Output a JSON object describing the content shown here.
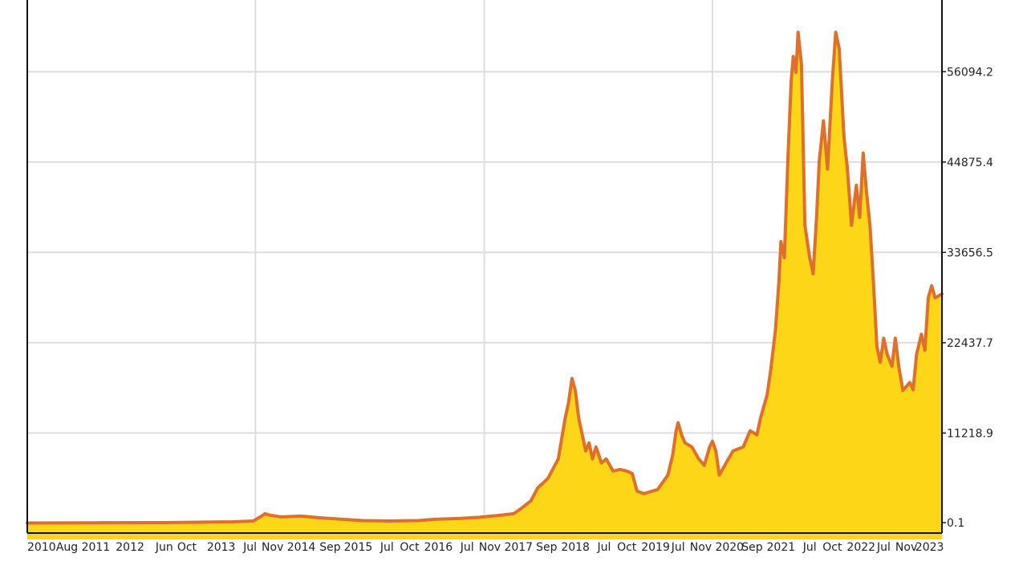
{
  "chart_data": {
    "type": "area",
    "title": "",
    "xlabel": "",
    "ylabel": "",
    "x_range": [
      2010.0,
      2023.35
    ],
    "ylim": [
      -1200,
      65000
    ],
    "grid": true,
    "y_axis_side": "right",
    "y_ticks": [
      {
        "value": 0.1,
        "label": "0.1"
      },
      {
        "value": 11218.9,
        "label": "11218.9"
      },
      {
        "value": 22437.7,
        "label": "22437.7"
      },
      {
        "value": 33656.5,
        "label": "33656.5"
      },
      {
        "value": 44875.4,
        "label": "44875.4"
      },
      {
        "value": 56094.2,
        "label": "56094.2"
      }
    ],
    "x_gridlines": [
      2013.33,
      2016.67,
      2020.0
    ],
    "x_labels": [
      {
        "x": 2010.0,
        "label": "2010"
      },
      {
        "x": 2010.58,
        "label": "Aug"
      },
      {
        "x": 2011.0,
        "label": "2011"
      },
      {
        "x": 2011.5,
        "label": "2012"
      },
      {
        "x": 2012.0,
        "label": "Jun"
      },
      {
        "x": 2012.33,
        "label": "Oct"
      },
      {
        "x": 2012.83,
        "label": "2013"
      },
      {
        "x": 2013.25,
        "label": "Jul"
      },
      {
        "x": 2013.58,
        "label": "Nov"
      },
      {
        "x": 2014.0,
        "label": "2014"
      },
      {
        "x": 2014.42,
        "label": "Sep"
      },
      {
        "x": 2014.83,
        "label": "2015"
      },
      {
        "x": 2015.25,
        "label": "Jul"
      },
      {
        "x": 2015.58,
        "label": "Oct"
      },
      {
        "x": 2016.0,
        "label": "2016"
      },
      {
        "x": 2016.42,
        "label": "Jul"
      },
      {
        "x": 2016.75,
        "label": "Nov"
      },
      {
        "x": 2017.17,
        "label": "2017"
      },
      {
        "x": 2017.58,
        "label": "Sep"
      },
      {
        "x": 2018.0,
        "label": "2018"
      },
      {
        "x": 2018.42,
        "label": "Jul"
      },
      {
        "x": 2018.75,
        "label": "Oct"
      },
      {
        "x": 2019.17,
        "label": "2019"
      },
      {
        "x": 2019.5,
        "label": "Jul"
      },
      {
        "x": 2019.83,
        "label": "Nov"
      },
      {
        "x": 2020.25,
        "label": "2020"
      },
      {
        "x": 2020.58,
        "label": "Sep"
      },
      {
        "x": 2021.0,
        "label": "2021"
      },
      {
        "x": 2021.42,
        "label": "Jul"
      },
      {
        "x": 2021.75,
        "label": "Oct"
      },
      {
        "x": 2022.17,
        "label": "2022"
      },
      {
        "x": 2022.5,
        "label": "Jul"
      },
      {
        "x": 2022.83,
        "label": "Nov"
      },
      {
        "x": 2023.17,
        "label": "2023"
      }
    ],
    "series": [
      {
        "fill_color": "#fcd617",
        "line_color": "#df6f2a",
        "points": [
          [
            2010.0,
            50
          ],
          [
            2011.0,
            80
          ],
          [
            2012.0,
            100
          ],
          [
            2012.5,
            150
          ],
          [
            2013.0,
            200
          ],
          [
            2013.3,
            300
          ],
          [
            2013.42,
            900
          ],
          [
            2013.47,
            1200
          ],
          [
            2013.55,
            1000
          ],
          [
            2013.7,
            800
          ],
          [
            2014.0,
            900
          ],
          [
            2014.25,
            700
          ],
          [
            2014.6,
            500
          ],
          [
            2014.9,
            350
          ],
          [
            2015.3,
            300
          ],
          [
            2015.7,
            350
          ],
          [
            2015.95,
            500
          ],
          [
            2016.3,
            600
          ],
          [
            2016.6,
            750
          ],
          [
            2016.9,
            1000
          ],
          [
            2017.1,
            1200
          ],
          [
            2017.2,
            1800
          ],
          [
            2017.35,
            2800
          ],
          [
            2017.45,
            4400
          ],
          [
            2017.6,
            5600
          ],
          [
            2017.75,
            8000
          ],
          [
            2017.85,
            13000
          ],
          [
            2017.9,
            15000
          ],
          [
            2017.95,
            18000
          ],
          [
            2018.0,
            16500
          ],
          [
            2018.05,
            13000
          ],
          [
            2018.1,
            11000
          ],
          [
            2018.15,
            9000
          ],
          [
            2018.2,
            10000
          ],
          [
            2018.25,
            8000
          ],
          [
            2018.3,
            9500
          ],
          [
            2018.38,
            7500
          ],
          [
            2018.45,
            8000
          ],
          [
            2018.55,
            6500
          ],
          [
            2018.65,
            6700
          ],
          [
            2018.75,
            6500
          ],
          [
            2018.83,
            6200
          ],
          [
            2018.9,
            4000
          ],
          [
            2019.0,
            3700
          ],
          [
            2019.2,
            4200
          ],
          [
            2019.35,
            6000
          ],
          [
            2019.42,
            8500
          ],
          [
            2019.47,
            11500
          ],
          [
            2019.5,
            12500
          ],
          [
            2019.55,
            11000
          ],
          [
            2019.6,
            10000
          ],
          [
            2019.7,
            9500
          ],
          [
            2019.8,
            8000
          ],
          [
            2019.88,
            7200
          ],
          [
            2019.96,
            9500
          ],
          [
            2020.0,
            10200
          ],
          [
            2020.05,
            9000
          ],
          [
            2020.1,
            6000
          ],
          [
            2020.2,
            7500
          ],
          [
            2020.3,
            9000
          ],
          [
            2020.45,
            9500
          ],
          [
            2020.55,
            11500
          ],
          [
            2020.65,
            11000
          ],
          [
            2020.7,
            13000
          ],
          [
            2020.8,
            16000
          ],
          [
            2020.85,
            19000
          ],
          [
            2020.92,
            24000
          ],
          [
            2020.97,
            30000
          ],
          [
            2021.0,
            35000
          ],
          [
            2021.05,
            33000
          ],
          [
            2021.1,
            45000
          ],
          [
            2021.15,
            55000
          ],
          [
            2021.18,
            58000
          ],
          [
            2021.22,
            56000
          ],
          [
            2021.25,
            61000
          ],
          [
            2021.3,
            57000
          ],
          [
            2021.35,
            37000
          ],
          [
            2021.42,
            33000
          ],
          [
            2021.47,
            31000
          ],
          [
            2021.52,
            38000
          ],
          [
            2021.56,
            45000
          ],
          [
            2021.62,
            50000
          ],
          [
            2021.68,
            44000
          ],
          [
            2021.75,
            55000
          ],
          [
            2021.8,
            61000
          ],
          [
            2021.85,
            59000
          ],
          [
            2021.92,
            48000
          ],
          [
            2021.97,
            44000
          ],
          [
            2022.03,
            37000
          ],
          [
            2022.1,
            42000
          ],
          [
            2022.15,
            38000
          ],
          [
            2022.2,
            46000
          ],
          [
            2022.25,
            41000
          ],
          [
            2022.3,
            37000
          ],
          [
            2022.35,
            30000
          ],
          [
            2022.4,
            22000
          ],
          [
            2022.45,
            20000
          ],
          [
            2022.5,
            23000
          ],
          [
            2022.55,
            21000
          ],
          [
            2022.62,
            19500
          ],
          [
            2022.67,
            23000
          ],
          [
            2022.72,
            19500
          ],
          [
            2022.78,
            16500
          ],
          [
            2022.83,
            17000
          ],
          [
            2022.88,
            17500
          ],
          [
            2022.93,
            16600
          ],
          [
            2022.98,
            21000
          ],
          [
            2023.05,
            23500
          ],
          [
            2023.1,
            21500
          ],
          [
            2023.15,
            28000
          ],
          [
            2023.2,
            29500
          ],
          [
            2023.25,
            28000
          ],
          [
            2023.35,
            28500
          ]
        ]
      }
    ]
  }
}
